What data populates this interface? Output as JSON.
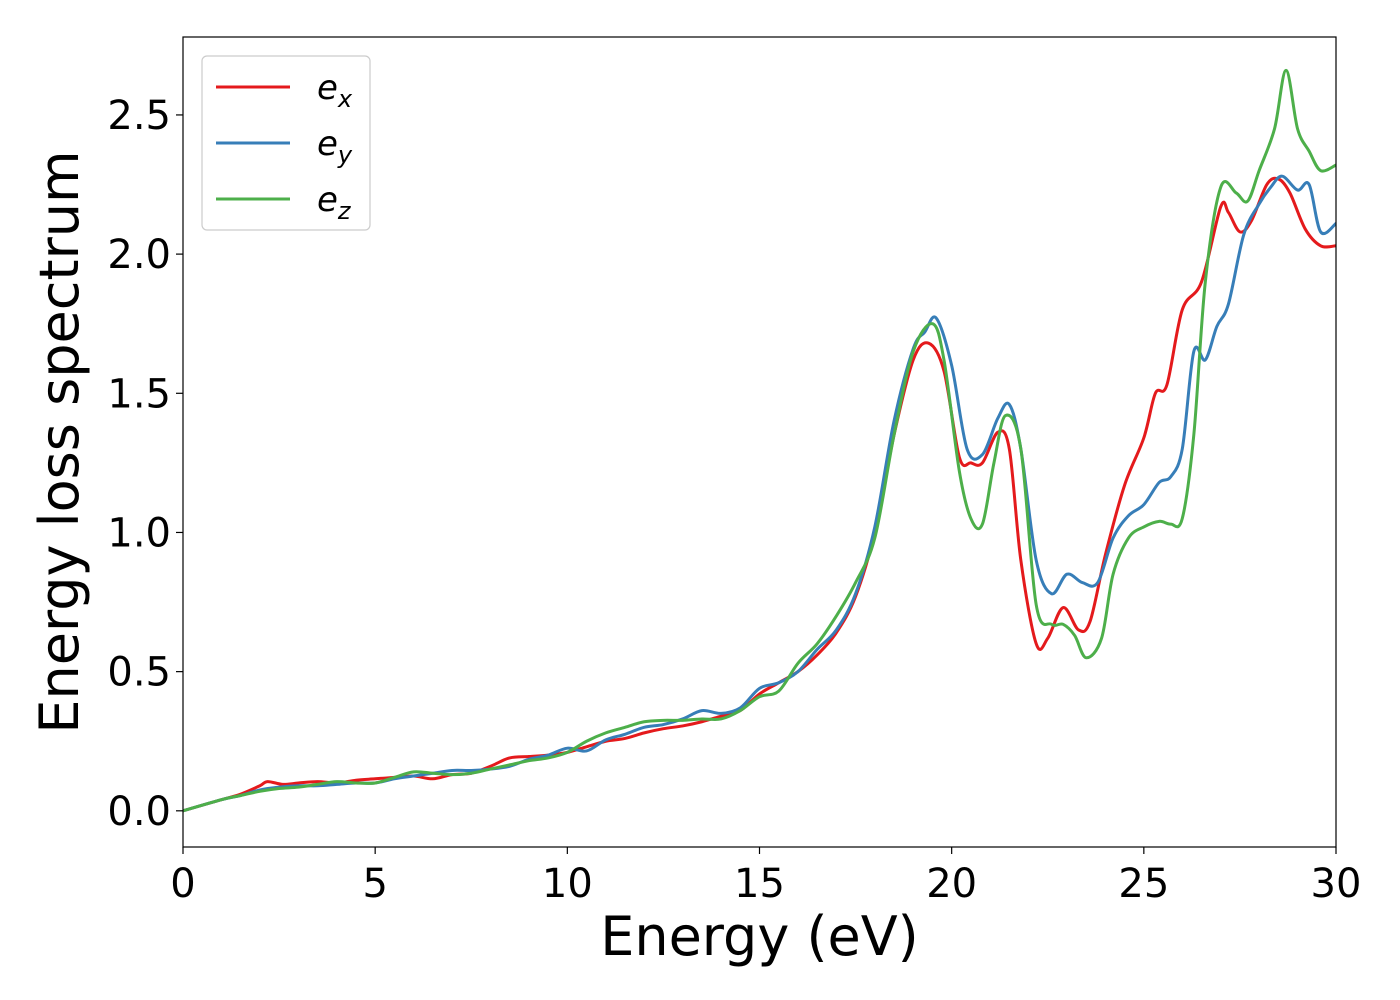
{
  "chart_data": {
    "type": "line",
    "xlabel": "Energy (eV)",
    "ylabel": "Energy loss spectrum",
    "xlim": [
      0,
      30
    ],
    "ylim": [
      -0.13,
      2.78
    ],
    "xticks": [
      0,
      5,
      10,
      15,
      20,
      25,
      30
    ],
    "xtick_labels": [
      "0",
      "5",
      "10",
      "15",
      "20",
      "25",
      "30"
    ],
    "yticks": [
      0.0,
      0.5,
      1.0,
      1.5,
      2.0,
      2.5
    ],
    "ytick_labels": [
      "0.0",
      "0.5",
      "1.0",
      "1.5",
      "2.0",
      "2.5"
    ],
    "grid": false,
    "legend_position": "top-left",
    "series": [
      {
        "name": "e_x",
        "legend_base": "e",
        "legend_sub": "x",
        "color": "#e41a1c",
        "x": [
          0,
          1,
          1.5,
          2,
          2.2,
          2.6,
          3,
          3.5,
          4,
          4.5,
          5,
          5.5,
          6,
          6.5,
          7,
          7.5,
          8,
          8.5,
          9,
          9.5,
          10,
          10.5,
          11,
          11.5,
          12,
          12.5,
          13,
          13.5,
          14,
          14.5,
          15,
          15.5,
          16,
          16.5,
          17,
          17.5,
          18,
          18.5,
          19,
          19.4,
          19.8,
          20.2,
          20.5,
          20.8,
          21.2,
          21.5,
          21.8,
          22.2,
          22.5,
          22.9,
          23.3,
          23.6,
          24,
          24.5,
          25,
          25.3,
          25.6,
          26,
          26.5,
          27,
          27.2,
          27.5,
          27.8,
          28.2,
          28.5,
          28.8,
          29.2,
          29.6,
          30
        ],
        "y": [
          0.0,
          0.04,
          0.06,
          0.09,
          0.105,
          0.095,
          0.1,
          0.105,
          0.1,
          0.11,
          0.115,
          0.12,
          0.125,
          0.115,
          0.13,
          0.135,
          0.16,
          0.19,
          0.195,
          0.2,
          0.21,
          0.23,
          0.25,
          0.26,
          0.28,
          0.295,
          0.305,
          0.32,
          0.34,
          0.36,
          0.42,
          0.46,
          0.5,
          0.56,
          0.64,
          0.77,
          1.0,
          1.35,
          1.62,
          1.68,
          1.58,
          1.27,
          1.25,
          1.25,
          1.36,
          1.3,
          0.9,
          0.6,
          0.62,
          0.73,
          0.65,
          0.68,
          0.92,
          1.17,
          1.34,
          1.5,
          1.53,
          1.8,
          1.9,
          2.17,
          2.15,
          2.08,
          2.12,
          2.25,
          2.27,
          2.22,
          2.09,
          2.03,
          2.03
        ]
      },
      {
        "name": "e_y",
        "legend_base": "e",
        "legend_sub": "y",
        "color": "#377eb8",
        "x": [
          0,
          1,
          1.5,
          2,
          2.5,
          3,
          3.5,
          4,
          4.5,
          5,
          5.5,
          6,
          6.5,
          7,
          7.5,
          8,
          8.5,
          9,
          9.5,
          10,
          10.5,
          11,
          11.5,
          12,
          12.5,
          13,
          13.5,
          14,
          14.5,
          15,
          15.5,
          16,
          16.5,
          17,
          17.5,
          18,
          18.5,
          19,
          19.3,
          19.6,
          20,
          20.4,
          20.8,
          21.2,
          21.5,
          21.8,
          22.2,
          22.6,
          23,
          23.4,
          23.8,
          24.2,
          24.6,
          25,
          25.4,
          25.7,
          26,
          26.3,
          26.6,
          26.9,
          27.2,
          27.6,
          28,
          28.3,
          28.6,
          29,
          29.3,
          29.6,
          30
        ],
        "y": [
          0.0,
          0.04,
          0.055,
          0.075,
          0.085,
          0.09,
          0.09,
          0.095,
          0.1,
          0.1,
          0.115,
          0.125,
          0.135,
          0.145,
          0.145,
          0.15,
          0.16,
          0.185,
          0.2,
          0.225,
          0.215,
          0.255,
          0.275,
          0.3,
          0.31,
          0.33,
          0.36,
          0.35,
          0.37,
          0.44,
          0.46,
          0.5,
          0.58,
          0.65,
          0.78,
          1.02,
          1.4,
          1.66,
          1.72,
          1.77,
          1.6,
          1.3,
          1.28,
          1.41,
          1.46,
          1.3,
          0.9,
          0.78,
          0.85,
          0.82,
          0.82,
          0.98,
          1.06,
          1.1,
          1.18,
          1.2,
          1.3,
          1.65,
          1.62,
          1.74,
          1.82,
          2.07,
          2.18,
          2.24,
          2.28,
          2.23,
          2.25,
          2.08,
          2.11
        ]
      },
      {
        "name": "e_z",
        "legend_base": "e",
        "legend_sub": "z",
        "color": "#4daf4a",
        "x": [
          0,
          1,
          1.5,
          2,
          2.5,
          3,
          3.5,
          4,
          4.5,
          5,
          5.5,
          6,
          6.5,
          7,
          7.5,
          8,
          8.5,
          9,
          9.5,
          10,
          10.5,
          11,
          11.5,
          12,
          12.5,
          13,
          13.5,
          14,
          14.5,
          15,
          15.5,
          16,
          16.5,
          17,
          17.5,
          18,
          18.5,
          19,
          19.5,
          19.8,
          20.2,
          20.5,
          20.8,
          21.1,
          21.4,
          21.8,
          22.2,
          22.6,
          22.9,
          23.2,
          23.5,
          23.9,
          24.2,
          24.6,
          25,
          25.4,
          25.7,
          26,
          26.3,
          26.6,
          27,
          27.4,
          27.7,
          28,
          28.4,
          28.7,
          29,
          29.3,
          29.6,
          30
        ],
        "y": [
          0.0,
          0.04,
          0.055,
          0.07,
          0.08,
          0.085,
          0.095,
          0.105,
          0.1,
          0.1,
          0.12,
          0.14,
          0.135,
          0.13,
          0.135,
          0.15,
          0.165,
          0.18,
          0.19,
          0.21,
          0.25,
          0.28,
          0.3,
          0.32,
          0.325,
          0.325,
          0.33,
          0.33,
          0.36,
          0.41,
          0.43,
          0.53,
          0.6,
          0.7,
          0.82,
          0.98,
          1.35,
          1.65,
          1.75,
          1.62,
          1.22,
          1.05,
          1.03,
          1.25,
          1.42,
          1.3,
          0.74,
          0.67,
          0.67,
          0.63,
          0.55,
          0.62,
          0.85,
          0.98,
          1.02,
          1.04,
          1.03,
          1.05,
          1.35,
          1.9,
          2.24,
          2.22,
          2.19,
          2.3,
          2.45,
          2.66,
          2.45,
          2.37,
          2.3,
          2.32
        ]
      }
    ]
  }
}
